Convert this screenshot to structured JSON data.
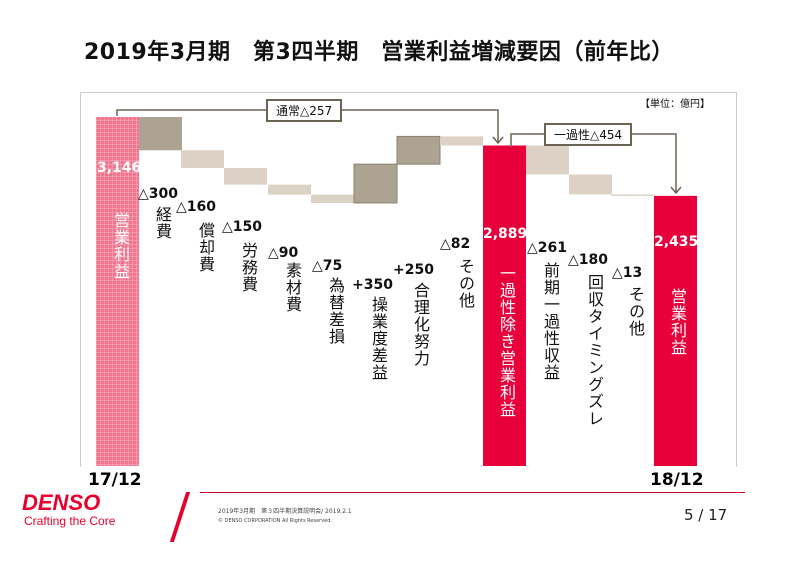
{
  "title": "2019年3月期　第3四半期　営業利益増減要因（前年比）",
  "unit": "【単位：億円】",
  "chart_data": {
    "type": "waterfall",
    "ylim": [
      0,
      3146
    ],
    "items": [
      {
        "label": "営業利益",
        "value": 3146,
        "kind": "total",
        "value_label": "3,146"
      },
      {
        "label": "経費",
        "value": -300,
        "kind": "delta",
        "value_label": "△300"
      },
      {
        "label": "償却費",
        "value": -160,
        "kind": "delta",
        "value_label": "△160"
      },
      {
        "label": "労務費",
        "value": -150,
        "kind": "delta",
        "value_label": "△150"
      },
      {
        "label": "素材費",
        "value": -90,
        "kind": "delta",
        "value_label": "△90"
      },
      {
        "label": "為替差損",
        "value": -75,
        "kind": "delta",
        "value_label": "△75"
      },
      {
        "label": "操業度差益",
        "value": 350,
        "kind": "delta",
        "value_label": "+350"
      },
      {
        "label": "合理化努力",
        "value": 250,
        "kind": "delta",
        "value_label": "+250"
      },
      {
        "label": "その他",
        "value": -82,
        "kind": "delta",
        "value_label": "△82"
      },
      {
        "label": "一過性除き営業利益",
        "value": 2889,
        "kind": "total",
        "value_label": "2,889"
      },
      {
        "label": "前期一過性収益",
        "value": -261,
        "kind": "delta",
        "value_label": "△261"
      },
      {
        "label": "回収タイミングズレ",
        "value": -180,
        "kind": "delta",
        "value_label": "△180"
      },
      {
        "label": "その他",
        "value": -13,
        "kind": "delta",
        "value_label": "△13"
      },
      {
        "label": "営業利益",
        "value": 2435,
        "kind": "total",
        "value_label": "2,435"
      }
    ],
    "x_labels": {
      "start": "17/12",
      "end": "18/12"
    },
    "brackets": [
      {
        "label": "通常△257"
      },
      {
        "label": "一過性△454"
      }
    ],
    "colors": {
      "start_total": "#f2758f",
      "total": "#e8003a",
      "minor": "#dbd2c5",
      "major": "#ada393"
    }
  },
  "footer": {
    "logo": "DENSO",
    "tagline": "Crafting the Core",
    "event": "2019年3月期　第３四半期決算説明会/ 2019.2.1",
    "copyright": "© DENSO CORPORATION All Rights Reserved.",
    "page": "5 / 17"
  }
}
